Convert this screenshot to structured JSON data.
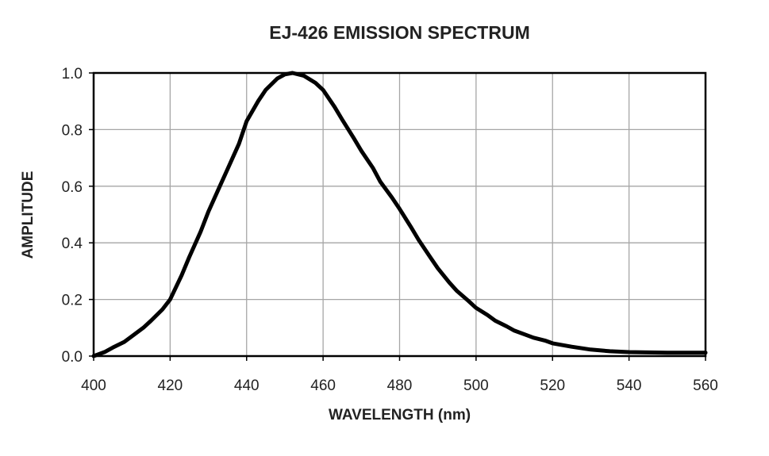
{
  "chart_data": {
    "type": "line",
    "title": "EJ-426 EMISSION SPECTRUM",
    "xlabel": "WAVELENGTH  (nm)",
    "ylabel": "AMPLITUDE",
    "xlim": [
      400,
      560
    ],
    "ylim": [
      0.0,
      1.0
    ],
    "xticks": [
      "400",
      "420",
      "440",
      "460",
      "480",
      "500",
      "520",
      "540",
      "560"
    ],
    "yticks": [
      "0.0",
      "0.2",
      "0.4",
      "0.6",
      "0.8",
      "1.0"
    ],
    "grid": true,
    "legend": "none",
    "colors": {
      "line": "#000000",
      "grid": "#a6a6a6",
      "axis": "#000000"
    },
    "series": [
      {
        "x": [
          400,
          403,
          405,
          408,
          410,
          413,
          415,
          418,
          420,
          423,
          425,
          428,
          430,
          433,
          435,
          438,
          440,
          443,
          445,
          448,
          450,
          452,
          455,
          458,
          460,
          463,
          465,
          468,
          470,
          473,
          475,
          478,
          480,
          483,
          485,
          488,
          490,
          493,
          495,
          498,
          500,
          503,
          505,
          508,
          510,
          513,
          515,
          518,
          520,
          525,
          530,
          535,
          540,
          545,
          550,
          555,
          560
        ],
        "y": [
          0.0,
          0.015,
          0.03,
          0.05,
          0.07,
          0.1,
          0.125,
          0.165,
          0.2,
          0.285,
          0.35,
          0.44,
          0.51,
          0.6,
          0.66,
          0.75,
          0.83,
          0.9,
          0.94,
          0.98,
          0.995,
          1.0,
          0.99,
          0.965,
          0.94,
          0.88,
          0.835,
          0.77,
          0.725,
          0.665,
          0.615,
          0.56,
          0.52,
          0.455,
          0.41,
          0.35,
          0.31,
          0.26,
          0.23,
          0.195,
          0.17,
          0.145,
          0.125,
          0.105,
          0.09,
          0.075,
          0.065,
          0.055,
          0.045,
          0.033,
          0.023,
          0.017,
          0.014,
          0.013,
          0.012,
          0.012,
          0.012
        ]
      }
    ]
  }
}
